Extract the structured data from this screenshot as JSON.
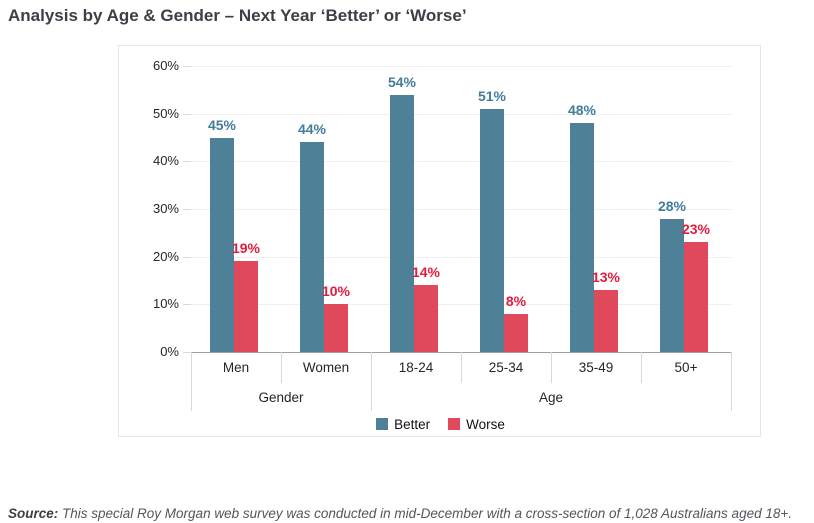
{
  "page": {
    "title": "Analysis by Age & Gender – Next Year ‘Better’ or ‘Worse’",
    "source_label": "Source:",
    "source_text": " This special Roy Morgan web survey was conducted in mid-December with a cross-section of 1,028 Australians aged 18+."
  },
  "colors": {
    "better_bar": "#4e8198",
    "better_label": "#427d9b",
    "worse_bar": "#e0495c",
    "worse_label": "#e21c3f",
    "axis_text": "#262626",
    "grid": "#f1efee",
    "axis_line": "#9f9f9f",
    "cell_border": "#d9d9d9"
  },
  "chart_data": {
    "type": "bar",
    "title": "Analysis by Age & Gender – Next Year ‘Better’ or ‘Worse’",
    "categories": [
      "Men",
      "Women",
      "18-24",
      "25-34",
      "35-49",
      "50+"
    ],
    "group_labels": [
      {
        "label": "Gender",
        "span": 2
      },
      {
        "label": "Age",
        "span": 4
      }
    ],
    "series": [
      {
        "name": "Better",
        "color": "#4e8198",
        "label_color": "#427d9b",
        "values": [
          45,
          44,
          54,
          51,
          48,
          28
        ]
      },
      {
        "name": "Worse",
        "color": "#e0495c",
        "label_color": "#e21c3f",
        "values": [
          19,
          10,
          14,
          8,
          13,
          23
        ]
      }
    ],
    "xlabel": "",
    "ylabel": "",
    "ylim": [
      0,
      60
    ],
    "ytick_step": 10,
    "ytick_labels": [
      "0%",
      "10%",
      "20%",
      "30%",
      "40%",
      "50%",
      "60%"
    ],
    "value_suffix": "%",
    "grid": true,
    "legend_position": "bottom"
  }
}
